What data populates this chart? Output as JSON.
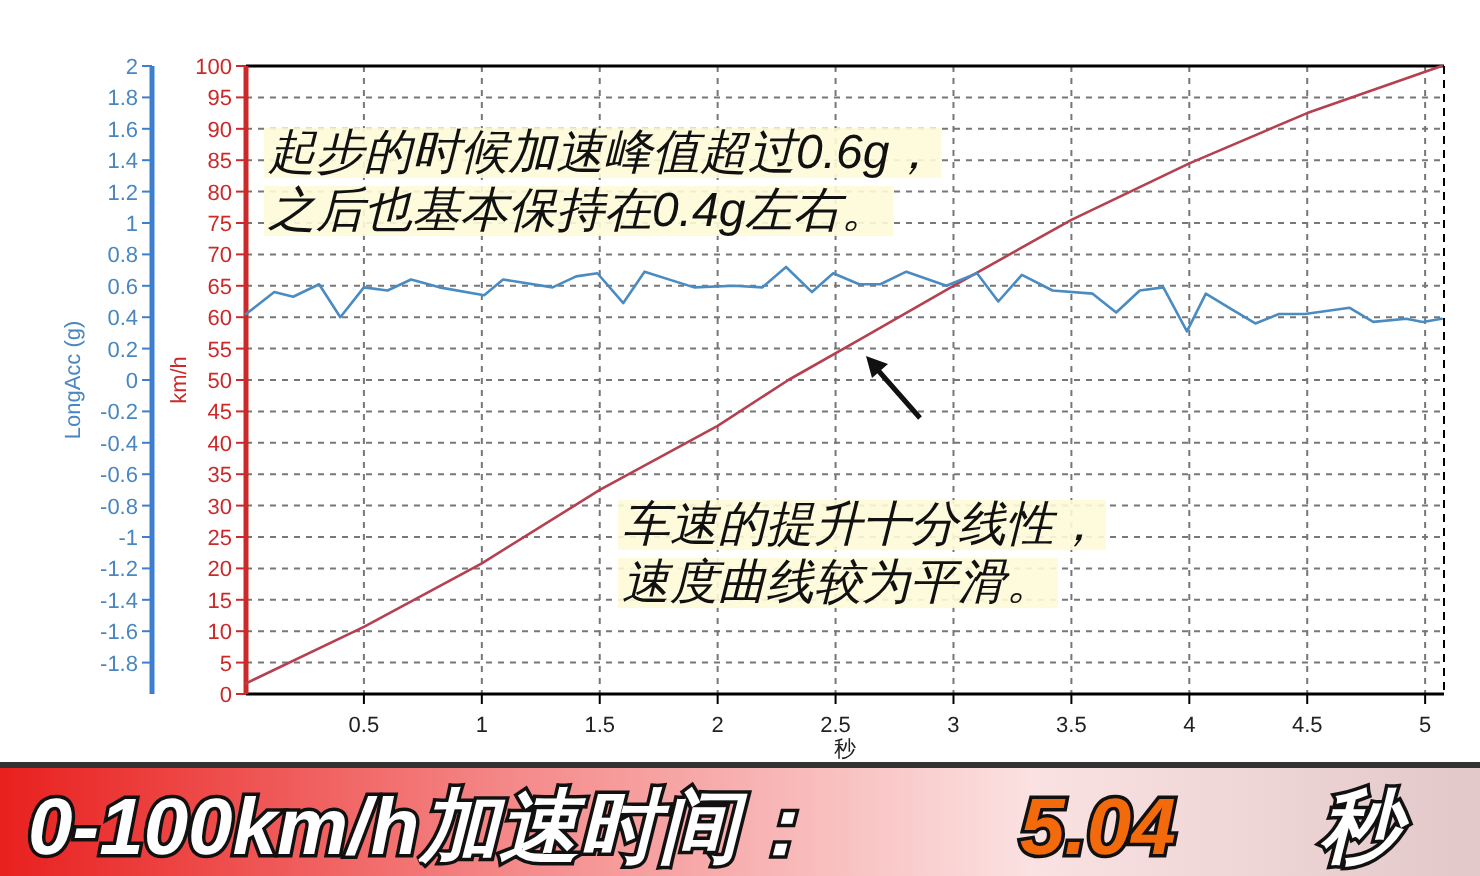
{
  "chart_data": {
    "type": "line",
    "title": "0-100km/h加速时间：",
    "xlabel": "秒",
    "ylabel": "km/h",
    "y2label": "LongAcc (g)",
    "series": [
      {
        "color": "#b5404f",
        "x": [
          0,
          0.5,
          1,
          1.5,
          2,
          2.3,
          2.6,
          3,
          3.5,
          4,
          4.5,
          5.07
        ],
        "values": [
          1.7,
          10.7,
          20.8,
          32.5,
          42.7,
          50,
          56.4,
          65,
          75.5,
          84.5,
          92.5,
          100
        ]
      },
      {
        "color": "#4a8cc2",
        "axis": "y2",
        "x": [
          0,
          0.12,
          0.2,
          0.31,
          0.4,
          0.5,
          0.6,
          0.7,
          0.82,
          1.01,
          1.09,
          1.3,
          1.4,
          1.49,
          1.6,
          1.69,
          1.9,
          2.07,
          2.19,
          2.29,
          2.4,
          2.49,
          2.6,
          2.69,
          2.8,
          2.97,
          3.1,
          3.19,
          3.29,
          3.42,
          3.59,
          3.69,
          3.79,
          3.89,
          3.99,
          4.07,
          4.18,
          4.28,
          4.38,
          4.49,
          4.68,
          4.78,
          4.92,
          4.99,
          5.07
        ],
        "values": [
          0.42,
          0.56,
          0.53,
          0.61,
          0.4,
          0.59,
          0.57,
          0.64,
          0.59,
          0.54,
          0.64,
          0.59,
          0.66,
          0.68,
          0.49,
          0.69,
          0.59,
          0.6,
          0.59,
          0.72,
          0.56,
          0.68,
          0.61,
          0.61,
          0.69,
          0.6,
          0.68,
          0.5,
          0.67,
          0.57,
          0.55,
          0.43,
          0.57,
          0.59,
          0.31,
          0.55,
          0.45,
          0.36,
          0.42,
          0.42,
          0.46,
          0.37,
          0.39,
          0.37,
          0.39
        ]
      }
    ],
    "xlim": [
      0,
      5.08
    ],
    "xticks": [
      0.5,
      1,
      1.5,
      2,
      2.5,
      3,
      3.5,
      4,
      4.5,
      5
    ],
    "ylim": [
      0,
      100
    ],
    "yticks": [
      0,
      5,
      10,
      15,
      20,
      25,
      30,
      35,
      40,
      45,
      50,
      55,
      60,
      65,
      70,
      75,
      80,
      85,
      90,
      95,
      100
    ],
    "y2lim": [
      -2,
      2
    ],
    "y2ticks": [
      -1.8,
      -1.6,
      -1.4,
      -1.2,
      -1,
      -0.8,
      -0.6,
      -0.4,
      -0.2,
      0,
      0.2,
      0.4,
      0.6,
      0.8,
      1,
      1.2,
      1.4,
      1.6,
      1.8,
      2
    ],
    "grid": true,
    "line_style": "solid",
    "marker": "none",
    "annotations": [
      "起步的时候加速峰值超过0.6g，",
      "之后也基本保持在0.4g左右。",
      "车速的提升十分线性，",
      "速度曲线较为平滑。",
      "5.04",
      "秒"
    ]
  }
}
